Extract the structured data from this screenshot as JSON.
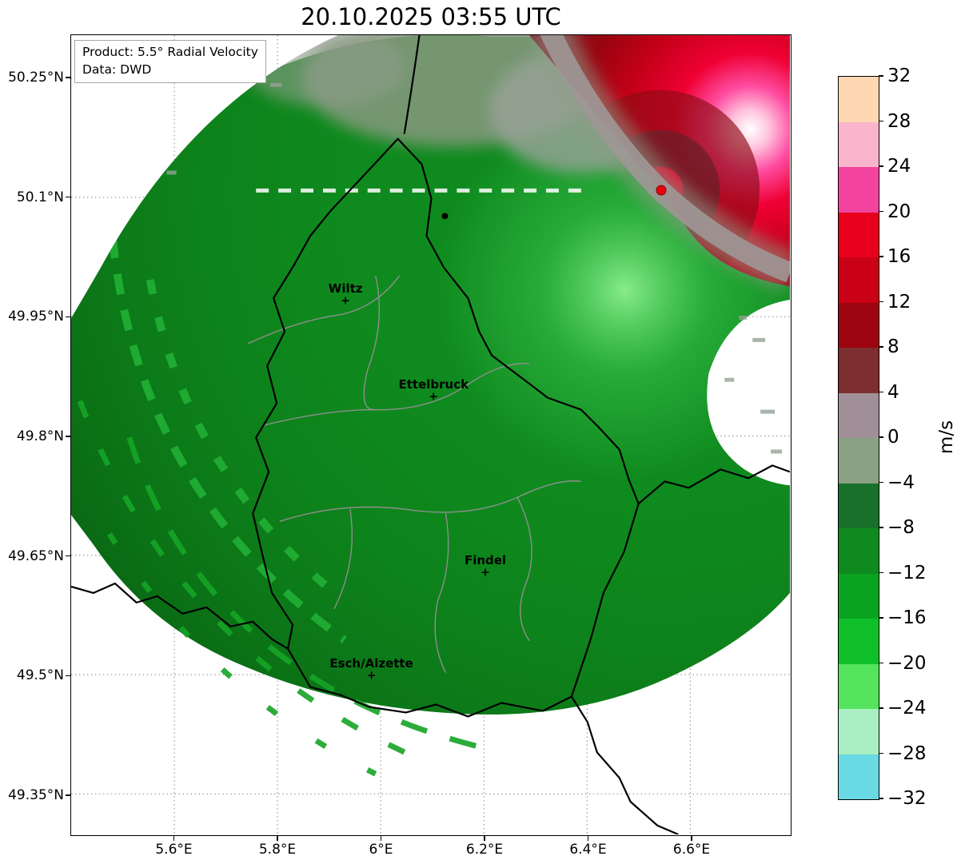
{
  "figure": {
    "title": "20.10.2025 03:55 UTC",
    "info_box": {
      "product": "Product: 5.5° Radial Velocity",
      "source": "Data: DWD"
    }
  },
  "chart_data": {
    "type": "heatmap",
    "subtype": "doppler-radar-radial-velocity-map",
    "title": "20.10.2025 03:55 UTC",
    "product": "5.5° Radial Velocity",
    "data_source": "DWD",
    "units": "m/s",
    "x_axis": {
      "ticks": [
        {
          "label": "5.6°E",
          "value": 5.6
        },
        {
          "label": "5.8°E",
          "value": 5.8
        },
        {
          "label": "6°E",
          "value": 6.0
        },
        {
          "label": "6.2°E",
          "value": 6.2
        },
        {
          "label": "6.4°E",
          "value": 6.4
        },
        {
          "label": "6.6°E",
          "value": 6.6
        }
      ],
      "range": [
        5.4,
        6.793
      ],
      "grid": true
    },
    "y_axis": {
      "ticks": [
        {
          "label": "50.25°N",
          "value": 50.25
        },
        {
          "label": "50.1°N",
          "value": 50.1
        },
        {
          "label": "49.95°N",
          "value": 49.95
        },
        {
          "label": "49.8°N",
          "value": 49.8
        },
        {
          "label": "49.65°N",
          "value": 49.65
        },
        {
          "label": "49.5°N",
          "value": 49.5
        },
        {
          "label": "49.35°N",
          "value": 49.35
        }
      ],
      "range": [
        49.299,
        50.304
      ],
      "grid": true
    },
    "colorbar": {
      "label": "m/s",
      "min": -32,
      "max": 32,
      "tick_values": [
        32,
        28,
        24,
        20,
        16,
        12,
        8,
        4,
        0,
        -4,
        -8,
        -12,
        -16,
        -20,
        -24,
        -28,
        -32
      ],
      "segments_top_to_bottom": [
        {
          "from": 28,
          "to": 32,
          "color": "#fdd8b2"
        },
        {
          "from": 24,
          "to": 28,
          "color": "#fab5cd"
        },
        {
          "from": 20,
          "to": 24,
          "color": "#f2449e"
        },
        {
          "from": 16,
          "to": 20,
          "color": "#e6001c"
        },
        {
          "from": 12,
          "to": 16,
          "color": "#c90016"
        },
        {
          "from": 8,
          "to": 12,
          "color": "#9e0310"
        },
        {
          "from": 4,
          "to": 8,
          "color": "#7e2e2e"
        },
        {
          "from": 0,
          "to": 4,
          "color": "#a18f98"
        },
        {
          "from": -4,
          "to": 0,
          "color": "#8aa083"
        },
        {
          "from": -8,
          "to": -4,
          "color": "#19702a"
        },
        {
          "from": -12,
          "to": -8,
          "color": "#0f8a1e"
        },
        {
          "from": -16,
          "to": -12,
          "color": "#0aa31f"
        },
        {
          "from": -20,
          "to": -16,
          "color": "#0fbf2a"
        },
        {
          "from": -24,
          "to": -20,
          "color": "#55e45e"
        },
        {
          "from": -28,
          "to": -24,
          "color": "#a9efc3"
        },
        {
          "from": -32,
          "to": -28,
          "color": "#69d9e4"
        }
      ]
    },
    "radar_site": {
      "lon": 6.54,
      "lat": 50.11,
      "marker_color": "#e8000f"
    },
    "cities": [
      {
        "name": "Wiltz",
        "lon": 5.93,
        "lat": 49.97
      },
      {
        "name": "Ettelbruck",
        "lon": 6.1,
        "lat": 49.85
      },
      {
        "name": "Findel",
        "lon": 6.2,
        "lat": 49.63
      },
      {
        "name": "Esch/Alzette",
        "lon": 5.98,
        "lat": 49.5
      }
    ],
    "field_regions": [
      {
        "name": "inbound-flow",
        "velocity_range_ms": [
          -24,
          -4
        ],
        "appearance": "green shades covering Luxembourg and the southwest sector of the radar scan"
      },
      {
        "name": "outbound-flow",
        "velocity_range_ms": [
          4,
          28
        ],
        "appearance": "dark red to bright pink shades northeast of the radar site"
      },
      {
        "name": "zero-isodop",
        "velocity_range_ms": [
          -4,
          4
        ],
        "appearance": "gray band running through the radar location from north to east"
      },
      {
        "name": "no-data",
        "appearance": "white areas: top-left corner, patch east of the radar, and beyond the echo edge to the south"
      }
    ]
  }
}
